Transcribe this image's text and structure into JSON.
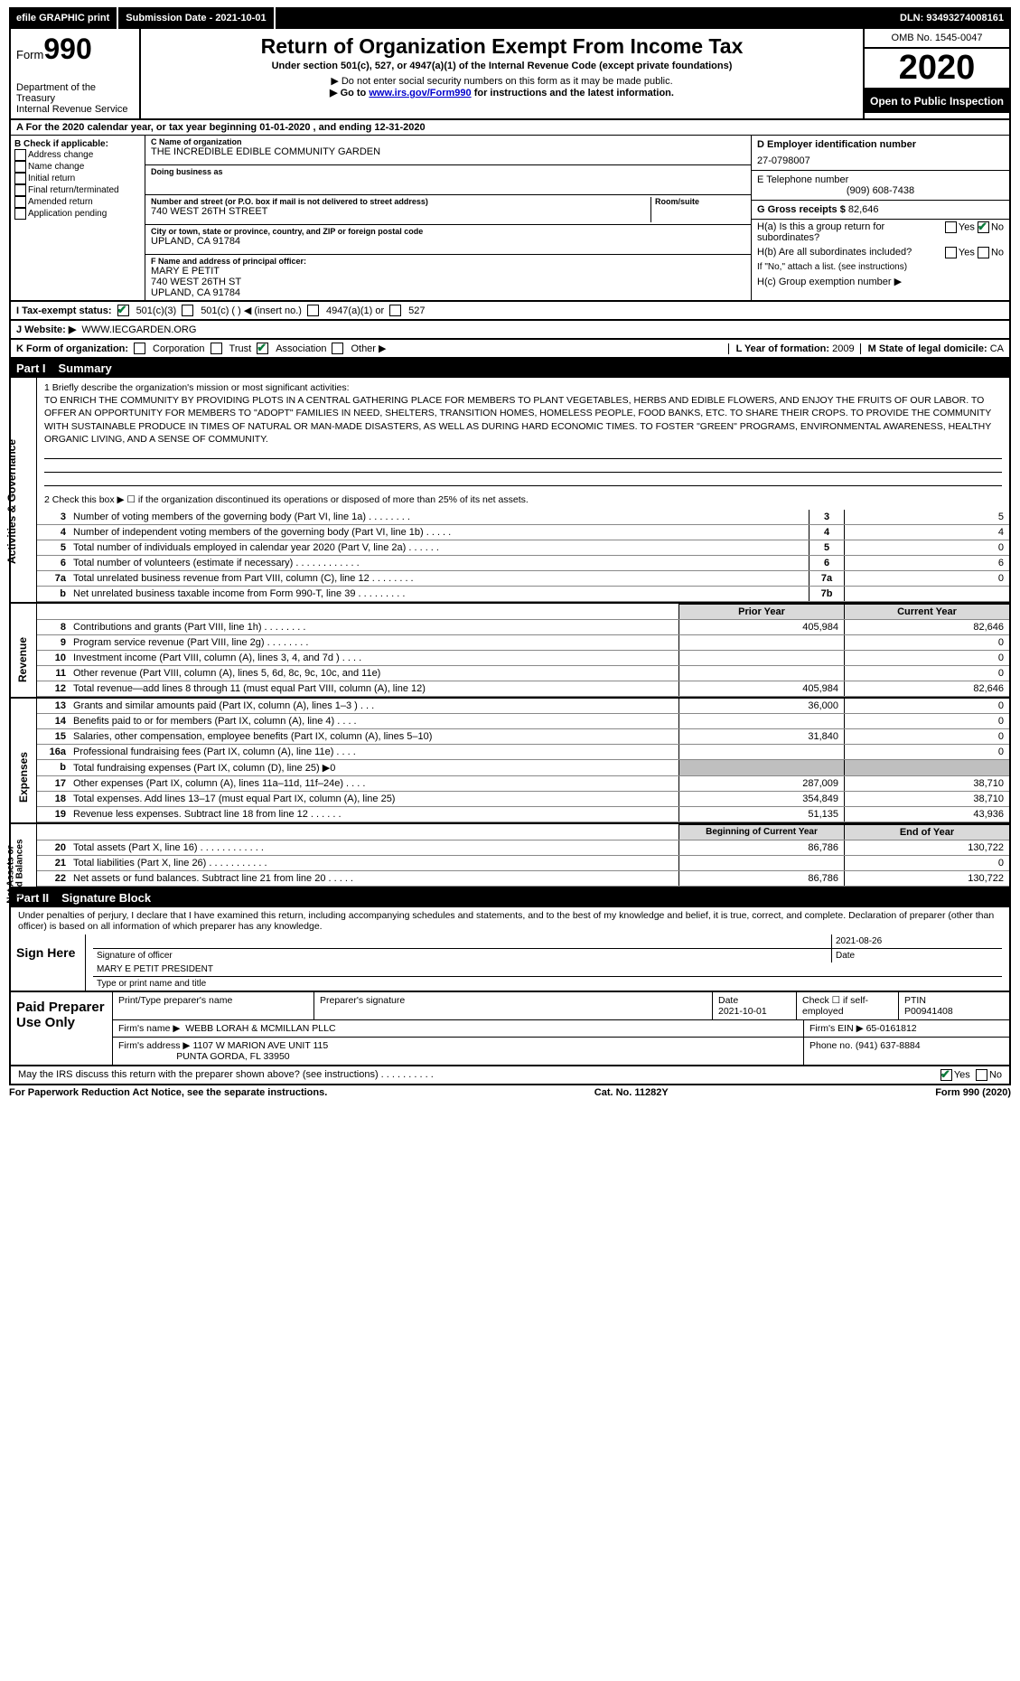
{
  "topbar": {
    "efile": "efile GRAPHIC print",
    "submission": "Submission Date - 2021-10-01",
    "dln": "DLN: 93493274008161"
  },
  "header": {
    "form_label": "Form",
    "form_number": "990",
    "dept": "Department of the Treasury",
    "irs": "Internal Revenue Service",
    "title": "Return of Organization Exempt From Income Tax",
    "subtitle": "Under section 501(c), 527, or 4947(a)(1) of the Internal Revenue Code (except private foundations)",
    "note1": "▶ Do not enter social security numbers on this form as it may be made public.",
    "note2_pre": "▶ Go to ",
    "note2_link": "www.irs.gov/Form990",
    "note2_post": " for instructions and the latest information.",
    "omb": "OMB No. 1545-0047",
    "year": "2020",
    "open": "Open to Public Inspection"
  },
  "lineA": "A For the 2020 calendar year, or tax year beginning 01-01-2020   , and ending 12-31-2020",
  "colB": {
    "header": "B Check if applicable:",
    "items": [
      "Address change",
      "Name change",
      "Initial return",
      "Final return/terminated",
      "Amended return",
      "Application pending"
    ]
  },
  "colC": {
    "name_lbl": "C Name of organization",
    "name": "THE INCREDIBLE EDIBLE COMMUNITY GARDEN",
    "dba_lbl": "Doing business as",
    "dba": "",
    "addr_lbl": "Number and street (or P.O. box if mail is not delivered to street address)",
    "addr": "740 WEST 26TH STREET",
    "room_lbl": "Room/suite",
    "city_lbl": "City or town, state or province, country, and ZIP or foreign postal code",
    "city": "UPLAND, CA  91784",
    "officer_lbl": "F Name and address of principal officer:",
    "officer_name": "MARY E PETIT",
    "officer_addr1": "740 WEST 26TH ST",
    "officer_addr2": "UPLAND, CA  91784"
  },
  "colD": {
    "ein_lbl": "D Employer identification number",
    "ein": "27-0798007",
    "phone_lbl": "E Telephone number",
    "phone": "(909) 608-7438",
    "gross_lbl": "G Gross receipts $",
    "gross": "82,646",
    "ha": "H(a)  Is this a group return for subordinates?",
    "hb": "H(b)  Are all subordinates included?",
    "hb_note": "If \"No,\" attach a list. (see instructions)",
    "hc": "H(c)  Group exemption number ▶",
    "yes": "Yes",
    "no": "No"
  },
  "statusRow": {
    "label": "I   Tax-exempt status:",
    "opt1": "501(c)(3)",
    "opt2": "501(c) (   ) ◀ (insert no.)",
    "opt3": "4947(a)(1) or",
    "opt4": "527"
  },
  "websiteRow": {
    "label": "J   Website: ▶",
    "value": "WWW.IECGARDEN.ORG"
  },
  "korg": {
    "label": "K Form of organization:",
    "opts": [
      "Corporation",
      "Trust",
      "Association",
      "Other ▶"
    ],
    "checked_index": 2,
    "l_label": "L Year of formation:",
    "l_value": "2009",
    "m_label": "M State of legal domicile:",
    "m_value": "CA"
  },
  "part1": {
    "label": "Part I",
    "title": "Summary"
  },
  "mission_lbl": "1   Briefly describe the organization's mission or most significant activities:",
  "mission": "TO ENRICH THE COMMUNITY BY PROVIDING PLOTS IN A CENTRAL GATHERING PLACE FOR MEMBERS TO PLANT VEGETABLES, HERBS AND EDIBLE FLOWERS, AND ENJOY THE FRUITS OF OUR LABOR. TO OFFER AN OPPORTUNITY FOR MEMBERS TO \"ADOPT\" FAMILIES IN NEED, SHELTERS, TRANSITION HOMES, HOMELESS PEOPLE, FOOD BANKS, ETC. TO SHARE THEIR CROPS. TO PROVIDE THE COMMUNITY WITH SUSTAINABLE PRODUCE IN TIMES OF NATURAL OR MAN-MADE DISASTERS, AS WELL AS DURING HARD ECONOMIC TIMES. TO FOSTER \"GREEN\" PROGRAMS, ENVIRONMENTAL AWARENESS, HEALTHY ORGANIC LIVING, AND A SENSE OF COMMUNITY.",
  "line2": "2   Check this box ▶ ☐ if the organization discontinued its operations or disposed of more than 25% of its net assets.",
  "gov_rows": [
    {
      "n": "3",
      "d": "Number of voting members of the governing body (Part VI, line 1a)   .    .    .    .    .    .    .    .",
      "k": "3",
      "v": "5"
    },
    {
      "n": "4",
      "d": "Number of independent voting members of the governing body (Part VI, line 1b)   .    .    .    .    .",
      "k": "4",
      "v": "4"
    },
    {
      "n": "5",
      "d": "Total number of individuals employed in calendar year 2020 (Part V, line 2a)   .    .    .    .    .    .",
      "k": "5",
      "v": "0"
    },
    {
      "n": "6",
      "d": "Total number of volunteers (estimate if necessary)   .    .    .    .    .    .    .    .    .    .    .    .",
      "k": "6",
      "v": "6"
    },
    {
      "n": "7a",
      "d": "Total unrelated business revenue from Part VIII, column (C), line 12   .    .    .    .    .    .    .    .",
      "k": "7a",
      "v": "0"
    },
    {
      "n": "b",
      "d": "Net unrelated business taxable income from Form 990-T, line 39   .    .    .    .    .    .    .    .    .",
      "k": "7b",
      "v": ""
    }
  ],
  "rev_head": {
    "py": "Prior Year",
    "cy": "Current Year"
  },
  "rev_rows": [
    {
      "n": "8",
      "d": "Contributions and grants (Part VIII, line 1h)   .    .    .    .    .    .    .    .",
      "py": "405,984",
      "cy": "82,646"
    },
    {
      "n": "9",
      "d": "Program service revenue (Part VIII, line 2g)   .    .    .    .    .    .    .    .",
      "py": "",
      "cy": "0"
    },
    {
      "n": "10",
      "d": "Investment income (Part VIII, column (A), lines 3, 4, and 7d )   .    .    .    .",
      "py": "",
      "cy": "0"
    },
    {
      "n": "11",
      "d": "Other revenue (Part VIII, column (A), lines 5, 6d, 8c, 9c, 10c, and 11e)",
      "py": "",
      "cy": "0"
    },
    {
      "n": "12",
      "d": "Total revenue—add lines 8 through 11 (must equal Part VIII, column (A), line 12)",
      "py": "405,984",
      "cy": "82,646"
    }
  ],
  "exp_rows": [
    {
      "n": "13",
      "d": "Grants and similar amounts paid (Part IX, column (A), lines 1–3 )   .    .    .",
      "py": "36,000",
      "cy": "0"
    },
    {
      "n": "14",
      "d": "Benefits paid to or for members (Part IX, column (A), line 4)   .    .    .    .",
      "py": "",
      "cy": "0"
    },
    {
      "n": "15",
      "d": "Salaries, other compensation, employee benefits (Part IX, column (A), lines 5–10)",
      "py": "31,840",
      "cy": "0"
    },
    {
      "n": "16a",
      "d": "Professional fundraising fees (Part IX, column (A), line 11e)   .    .    .    .",
      "py": "",
      "cy": "0"
    },
    {
      "n": "b",
      "d": "Total fundraising expenses (Part IX, column (D), line 25) ▶0",
      "py": "shade",
      "cy": "shade"
    },
    {
      "n": "17",
      "d": "Other expenses (Part IX, column (A), lines 11a–11d, 11f–24e)   .    .    .    .",
      "py": "287,009",
      "cy": "38,710"
    },
    {
      "n": "18",
      "d": "Total expenses. Add lines 13–17 (must equal Part IX, column (A), line 25)",
      "py": "354,849",
      "cy": "38,710"
    },
    {
      "n": "19",
      "d": "Revenue less expenses. Subtract line 18 from line 12   .    .    .    .    .    .",
      "py": "51,135",
      "cy": "43,936"
    }
  ],
  "net_head": {
    "py": "Beginning of Current Year",
    "cy": "End of Year"
  },
  "net_rows": [
    {
      "n": "20",
      "d": "Total assets (Part X, line 16)   .    .    .    .    .    .    .    .    .    .    .    .",
      "py": "86,786",
      "cy": "130,722"
    },
    {
      "n": "21",
      "d": "Total liabilities (Part X, line 26)   .    .    .    .    .    .    .    .    .    .    .",
      "py": "",
      "cy": "0"
    },
    {
      "n": "22",
      "d": "Net assets or fund balances. Subtract line 21 from line 20   .    .    .    .    .",
      "py": "86,786",
      "cy": "130,722"
    }
  ],
  "vtabs": {
    "gov": "Activities & Governance",
    "rev": "Revenue",
    "exp": "Expenses",
    "net": "Net Assets or Fund Balances"
  },
  "part2": {
    "label": "Part II",
    "title": "Signature Block"
  },
  "perjury": "Under penalties of perjury, I declare that I have examined this return, including accompanying schedules and statements, and to the best of my knowledge and belief, it is true, correct, and complete. Declaration of preparer (other than officer) is based on all information of which preparer has any knowledge.",
  "sign": {
    "label": "Sign Here",
    "sig_of_officer": "Signature of officer",
    "date_lbl": "Date",
    "date": "2021-08-26",
    "name": "MARY E PETIT PRESIDENT",
    "name_lbl": "Type or print name and title"
  },
  "preparer": {
    "label": "Paid Preparer Use Only",
    "h1": "Print/Type preparer's name",
    "h2": "Preparer's signature",
    "h3": "Date",
    "date": "2021-10-01",
    "h4": "Check ☐ if self-employed",
    "h5": "PTIN",
    "ptin": "P00941408",
    "firm_lbl": "Firm's name     ▶",
    "firm": "WEBB LORAH & MCMILLAN PLLC",
    "ein_lbl": "Firm's EIN ▶",
    "ein": "65-0161812",
    "addr_lbl": "Firm's address ▶",
    "addr1": "1107 W MARION AVE UNIT 115",
    "addr2": "PUNTA GORDA, FL  33950",
    "phone_lbl": "Phone no.",
    "phone": "(941) 637-8884"
  },
  "discuss": {
    "text": "May the IRS discuss this return with the preparer shown above? (see instructions)   .    .    .    .    .    .    .    .    .    .",
    "yes": "Yes",
    "no": "No"
  },
  "footer": {
    "left": "For Paperwork Reduction Act Notice, see the separate instructions.",
    "mid": "Cat. No. 11282Y",
    "right": "Form 990 (2020)"
  }
}
